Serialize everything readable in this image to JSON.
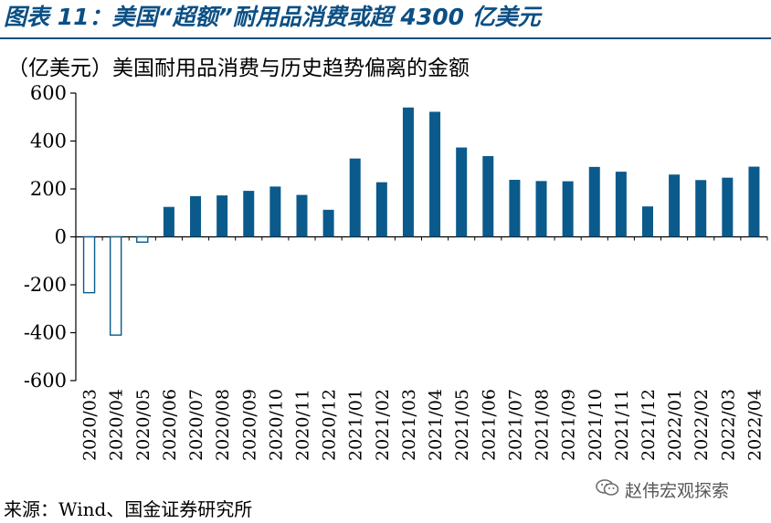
{
  "figure": {
    "title": "图表 11：美国“超额”耐用品消费或超 4300 亿美元",
    "source": "来源：Wind、国金证券研究所",
    "watermark": "赵伟宏观探索"
  },
  "colors": {
    "accent": "#0b4f84",
    "bar": "#0b5a8c"
  },
  "chart_data": {
    "type": "bar",
    "title": "（亿美元）美国耐用品消费与历史趋势偏离的金额",
    "xlabel": "",
    "ylabel": "",
    "ylim": [
      -600,
      600
    ],
    "yticks": [
      600,
      400,
      200,
      0,
      -200,
      -400,
      -600
    ],
    "grid": false,
    "categories": [
      "2020/03",
      "2020/04",
      "2020/05",
      "2020/06",
      "2020/07",
      "2020/08",
      "2020/09",
      "2020/10",
      "2020/11",
      "2020/12",
      "2021/01",
      "2021/02",
      "2021/03",
      "2021/04",
      "2021/05",
      "2021/06",
      "2021/07",
      "2021/08",
      "2021/09",
      "2021/10",
      "2021/11",
      "2021/12",
      "2022/01",
      "2022/02",
      "2022/03",
      "2022/04"
    ],
    "values": [
      -233,
      -410,
      -22,
      125,
      170,
      173,
      192,
      210,
      175,
      113,
      327,
      228,
      540,
      522,
      373,
      337,
      238,
      233,
      232,
      292,
      272,
      127,
      260,
      237,
      247,
      293
    ],
    "negative_style": "outlined"
  }
}
